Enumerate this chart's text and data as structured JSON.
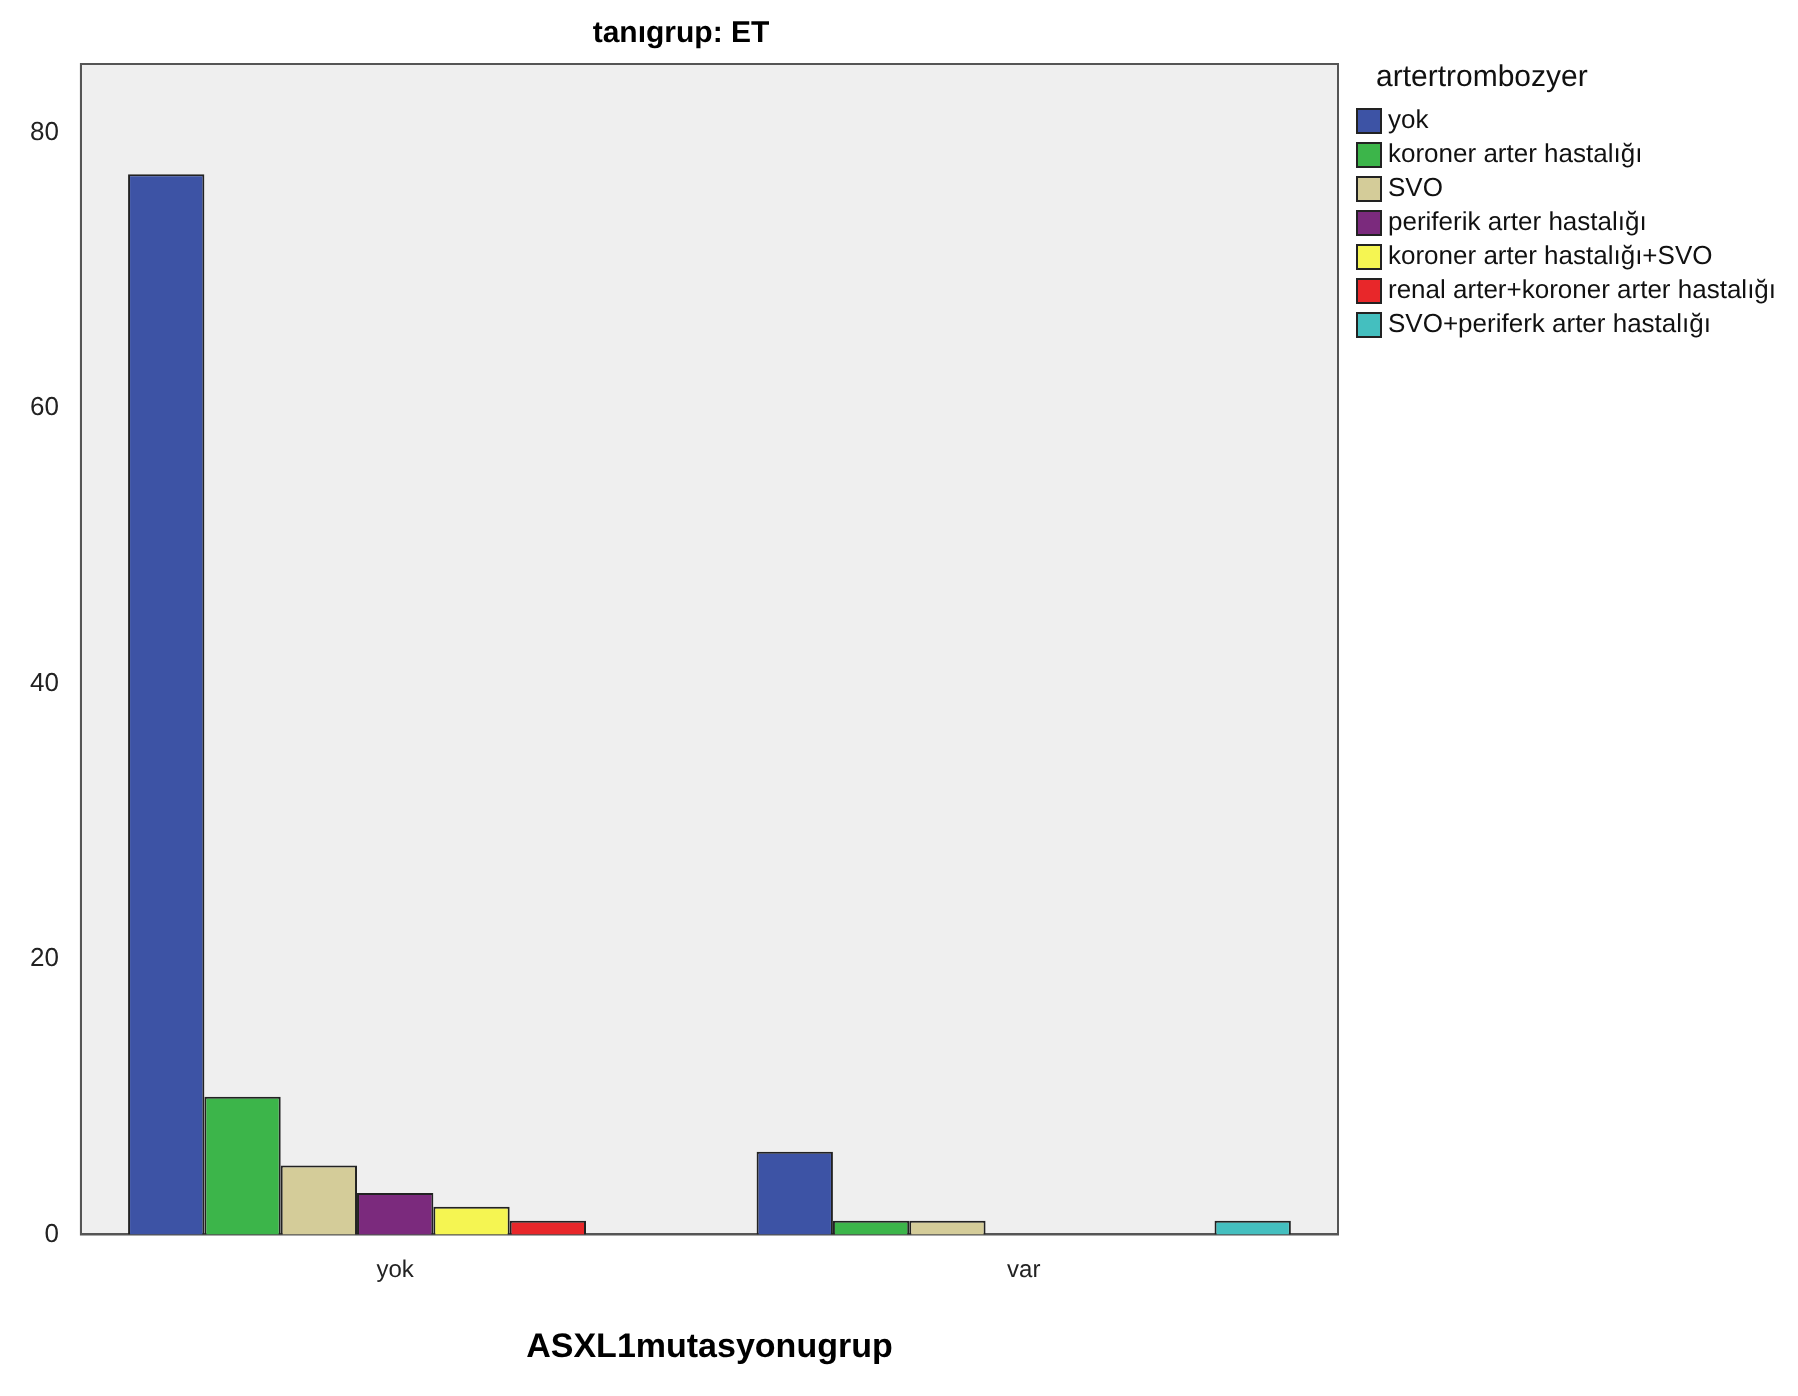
{
  "chart_data": {
    "type": "bar",
    "title": "tanıgrup: ET",
    "xlabel": "ASXL1mutasyonugrup",
    "legend_title": "artertrombozyer",
    "categories": [
      "yok",
      "var"
    ],
    "series": [
      {
        "name": "yok",
        "color": "#3d53a5",
        "values": [
          77,
          6
        ]
      },
      {
        "name": "koroner arter hastalığı",
        "color": "#3cb54a",
        "values": [
          10,
          1
        ]
      },
      {
        "name": "SVO",
        "color": "#d4cc99",
        "values": [
          5,
          1
        ]
      },
      {
        "name": "periferik arter hastalığı",
        "color": "#7b2a7d",
        "values": [
          3,
          null
        ]
      },
      {
        "name": "koroner arter hastalığı+SVO",
        "color": "#f5f552",
        "values": [
          2,
          null
        ]
      },
      {
        "name": "renal arter+koroner arter hastalığı",
        "color": "#e8272a",
        "values": [
          1,
          null
        ]
      },
      {
        "name": "SVO+periferk arter hastalığı",
        "color": "#44bfbf",
        "values": [
          null,
          1
        ]
      }
    ],
    "ylim": [
      0,
      85
    ],
    "yticks": [
      0,
      20,
      40,
      60,
      80
    ],
    "grid": false,
    "legend": "top right"
  }
}
